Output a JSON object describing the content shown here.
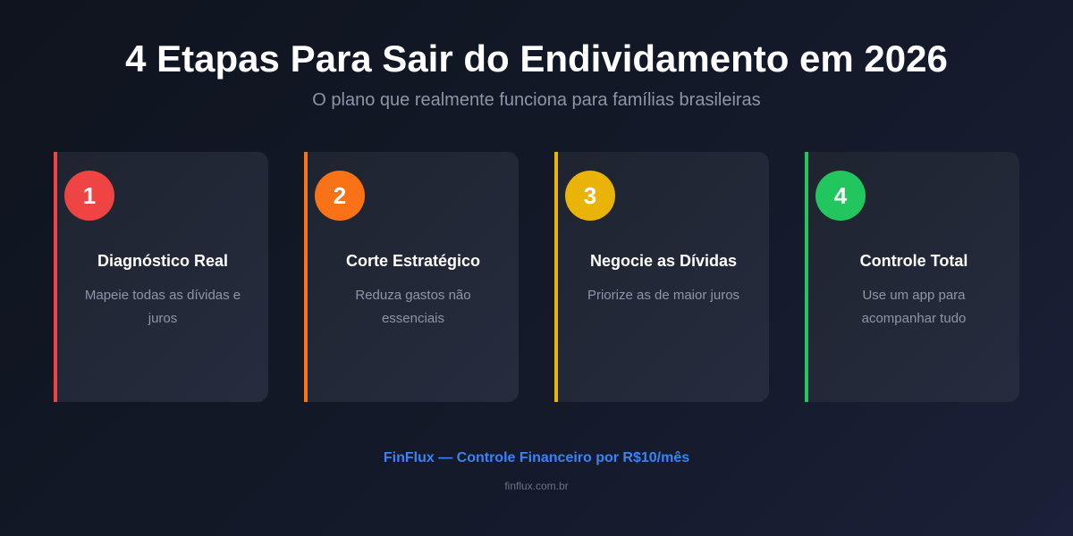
{
  "header": {
    "title": "4 Etapas Para Sair do Endividamento em 2026",
    "subtitle": "O plano que realmente funciona para famílias brasileiras"
  },
  "steps": [
    {
      "number": "1",
      "title": "Diagnóstico Real",
      "description": "Mapeie todas as dívidas e juros",
      "color": "#ef4444"
    },
    {
      "number": "2",
      "title": "Corte Estratégico",
      "description": "Reduza gastos não essenciais",
      "color": "#f97316"
    },
    {
      "number": "3",
      "title": "Negocie as Dívidas",
      "description": "Priorize as de maior juros",
      "color": "#eab308"
    },
    {
      "number": "4",
      "title": "Controle Total",
      "description": "Use um app para acompanhar tudo",
      "color": "#22c55e"
    }
  ],
  "footer": {
    "brand": "FinFlux — Controle Financeiro por R$10/mês",
    "url": "finflux.com.br"
  }
}
